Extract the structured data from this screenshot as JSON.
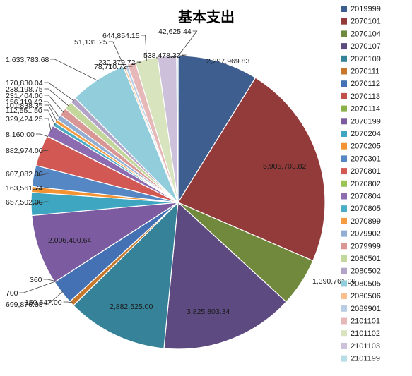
{
  "chart_data": {
    "type": "pie",
    "title": "基本支出",
    "legend_position": "right",
    "categories": [
      "2019999",
      "2070101",
      "2070104",
      "2070107",
      "2070109",
      "2070111",
      "2070112",
      "2070113",
      "2070114",
      "2070199",
      "2070204",
      "2070205",
      "2070301",
      "2070801",
      "2070802",
      "2070804",
      "2070805",
      "2070899",
      "2079902",
      "2079999",
      "2080501",
      "2080502",
      "2080505",
      "2080506",
      "2089901",
      "2101101",
      "2101102",
      "2101103",
      "2101199"
    ],
    "values": [
      2297969.83,
      5905703.82,
      1390761.0,
      3825803.34,
      2882525.0,
      150547.0,
      699876.35,
      700,
      360,
      2006400.64,
      657502.0,
      163561.74,
      607082.0,
      882974.0,
      8160.0,
      329424.25,
      112551.5,
      101838.35,
      156119.42,
      231404.0,
      238198.75,
      170830.04,
      1633783.68,
      51131.25,
      78710.72,
      230379.72,
      644854.15,
      538478.32,
      42625.44
    ],
    "data_labels": [
      "2,297,969.83",
      "5,905,703.82",
      "1,390,761.00",
      "3,825,803.34",
      "2,882,525.00",
      "150,547.00",
      "699,876.35",
      "700",
      "360",
      "2,006,400.64",
      "657,502.00",
      "163,561.74",
      "607,082.00",
      "882,974.00",
      "8,160.00",
      "329,424.25",
      "112,551.50",
      "101,838.35",
      "156,119.42",
      "231,404.00",
      "238,198.75",
      "170,830.04",
      "1,633,783.68",
      "51,131.25",
      "78,710.72",
      "230,379.72",
      "644,854.15",
      "538,478.32",
      "42,625.44"
    ],
    "colors": [
      "#3e5e8f",
      "#933b3b",
      "#71893c",
      "#5d4a80",
      "#368299",
      "#c7772b",
      "#4471b4",
      "#c0504d",
      "#8ab14a",
      "#7c5ba1",
      "#3ea6c0",
      "#f39333",
      "#5487c4",
      "#d25953",
      "#9dc256",
      "#8c6bb0",
      "#4bacc6",
      "#f59c42",
      "#93aed4",
      "#da9694",
      "#c3d69b",
      "#b3a3c7",
      "#92cddc",
      "#fac090",
      "#b9cde5",
      "#e6b9b8",
      "#d7e4bd",
      "#ccc0da",
      "#b7dee8"
    ]
  }
}
